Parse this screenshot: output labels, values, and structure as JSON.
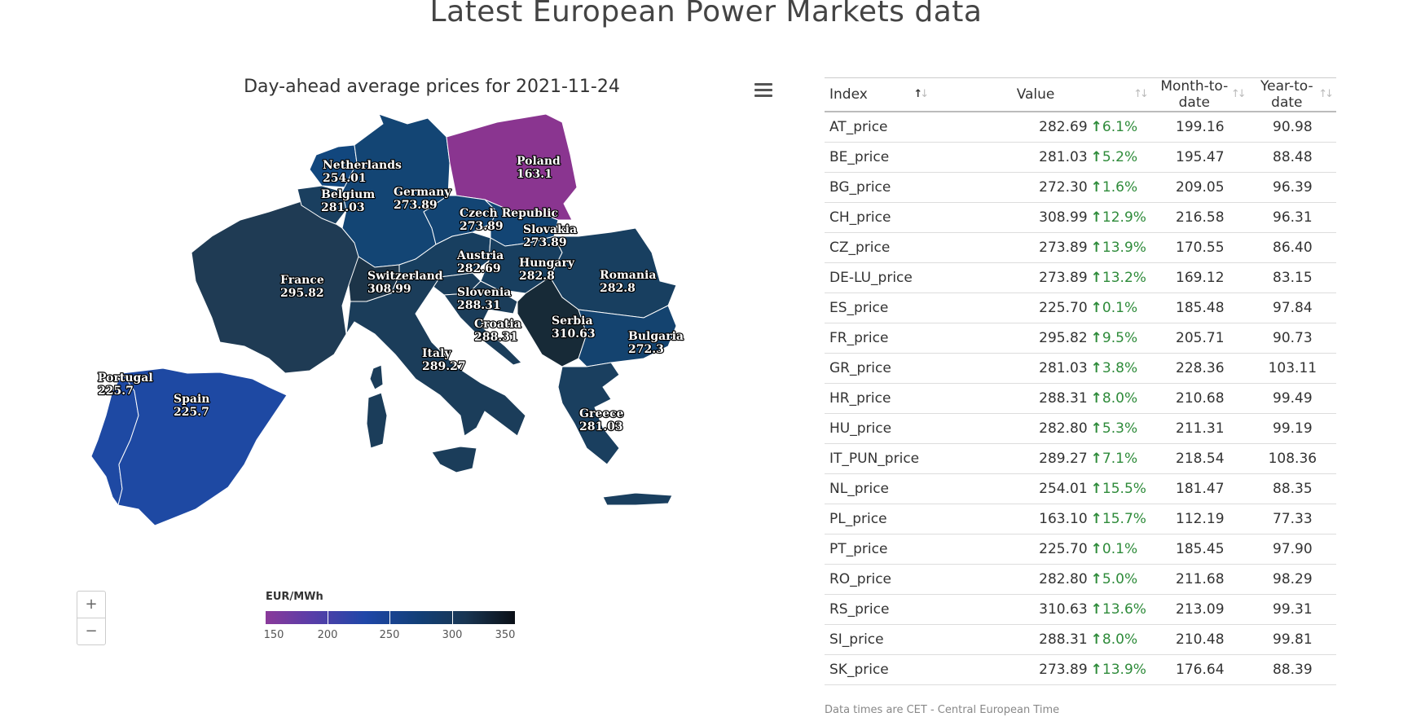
{
  "page": {
    "title": "Latest European Power Markets data"
  },
  "map": {
    "title": "Day-ahead average prices for 2021-11-24",
    "menu_icon": "hamburger-menu-icon",
    "zoom": {
      "in_label": "+",
      "out_label": "−"
    },
    "legend": {
      "title": "EUR/MWh",
      "ticks": [
        "150",
        "200",
        "250",
        "300",
        "350"
      ]
    },
    "countries": [
      {
        "name": "Netherlands",
        "price": "254.01",
        "color": "#12477e"
      },
      {
        "name": "Belgium",
        "price": "281.03",
        "color": "#1a3f5f"
      },
      {
        "name": "Germany",
        "price": "273.89",
        "color": "#134574"
      },
      {
        "name": "Poland",
        "price": "163.1",
        "color": "#8a3590"
      },
      {
        "name": "Czech Republic",
        "price": "273.89",
        "color": "#134574"
      },
      {
        "name": "Slovakia",
        "price": "273.89",
        "color": "#134574"
      },
      {
        "name": "France",
        "price": "295.82",
        "color": "#1f3b54"
      },
      {
        "name": "Switzerland",
        "price": "308.99",
        "color": "#1c3448"
      },
      {
        "name": "Austria",
        "price": "282.69",
        "color": "#183f60"
      },
      {
        "name": "Hungary",
        "price": "282.8",
        "color": "#183f60"
      },
      {
        "name": "Romania",
        "price": "282.8",
        "color": "#183f60"
      },
      {
        "name": "Slovenia",
        "price": "288.31",
        "color": "#1b3d5a"
      },
      {
        "name": "Croatia",
        "price": "288.31",
        "color": "#1b3d5a"
      },
      {
        "name": "Serbia",
        "price": "310.63",
        "color": "#172a37"
      },
      {
        "name": "Bulgaria",
        "price": "272.3",
        "color": "#14436f"
      },
      {
        "name": "Italy",
        "price": "289.27",
        "color": "#1b3d5a"
      },
      {
        "name": "Portugal",
        "price": "225.7",
        "color": "#1e49a3"
      },
      {
        "name": "Spain",
        "price": "225.7",
        "color": "#1e49a3"
      },
      {
        "name": "Greece",
        "price": "281.03",
        "color": "#1a3f5f"
      }
    ]
  },
  "table": {
    "headers": [
      "Index",
      "Value",
      "Month-to-date",
      "Year-to-date"
    ],
    "rows": [
      {
        "index": "AT_price",
        "value": "282.69",
        "change": "6.1%",
        "mtd": "199.16",
        "ytd": "90.98"
      },
      {
        "index": "BE_price",
        "value": "281.03",
        "change": "5.2%",
        "mtd": "195.47",
        "ytd": "88.48"
      },
      {
        "index": "BG_price",
        "value": "272.30",
        "change": "1.6%",
        "mtd": "209.05",
        "ytd": "96.39"
      },
      {
        "index": "CH_price",
        "value": "308.99",
        "change": "12.9%",
        "mtd": "216.58",
        "ytd": "96.31"
      },
      {
        "index": "CZ_price",
        "value": "273.89",
        "change": "13.9%",
        "mtd": "170.55",
        "ytd": "86.40"
      },
      {
        "index": "DE-LU_price",
        "value": "273.89",
        "change": "13.2%",
        "mtd": "169.12",
        "ytd": "83.15"
      },
      {
        "index": "ES_price",
        "value": "225.70",
        "change": "0.1%",
        "mtd": "185.48",
        "ytd": "97.84"
      },
      {
        "index": "FR_price",
        "value": "295.82",
        "change": "9.5%",
        "mtd": "205.71",
        "ytd": "90.73"
      },
      {
        "index": "GR_price",
        "value": "281.03",
        "change": "3.8%",
        "mtd": "228.36",
        "ytd": "103.11"
      },
      {
        "index": "HR_price",
        "value": "288.31",
        "change": "8.0%",
        "mtd": "210.68",
        "ytd": "99.49"
      },
      {
        "index": "HU_price",
        "value": "282.80",
        "change": "5.3%",
        "mtd": "211.31",
        "ytd": "99.19"
      },
      {
        "index": "IT_PUN_price",
        "value": "289.27",
        "change": "7.1%",
        "mtd": "218.54",
        "ytd": "108.36"
      },
      {
        "index": "NL_price",
        "value": "254.01",
        "change": "15.5%",
        "mtd": "181.47",
        "ytd": "88.35"
      },
      {
        "index": "PL_price",
        "value": "163.10",
        "change": "15.7%",
        "mtd": "112.19",
        "ytd": "77.33"
      },
      {
        "index": "PT_price",
        "value": "225.70",
        "change": "0.1%",
        "mtd": "185.45",
        "ytd": "97.90"
      },
      {
        "index": "RO_price",
        "value": "282.80",
        "change": "5.0%",
        "mtd": "211.68",
        "ytd": "98.29"
      },
      {
        "index": "RS_price",
        "value": "310.63",
        "change": "13.6%",
        "mtd": "213.09",
        "ytd": "99.31"
      },
      {
        "index": "SI_price",
        "value": "288.31",
        "change": "8.0%",
        "mtd": "210.48",
        "ytd": "99.81"
      },
      {
        "index": "SK_price",
        "value": "273.89",
        "change": "13.9%",
        "mtd": "176.64",
        "ytd": "88.39"
      }
    ],
    "change_arrow": "🡑",
    "change_color": "#2e8b3a"
  },
  "footnote": "Data times are CET - Central European Time"
}
